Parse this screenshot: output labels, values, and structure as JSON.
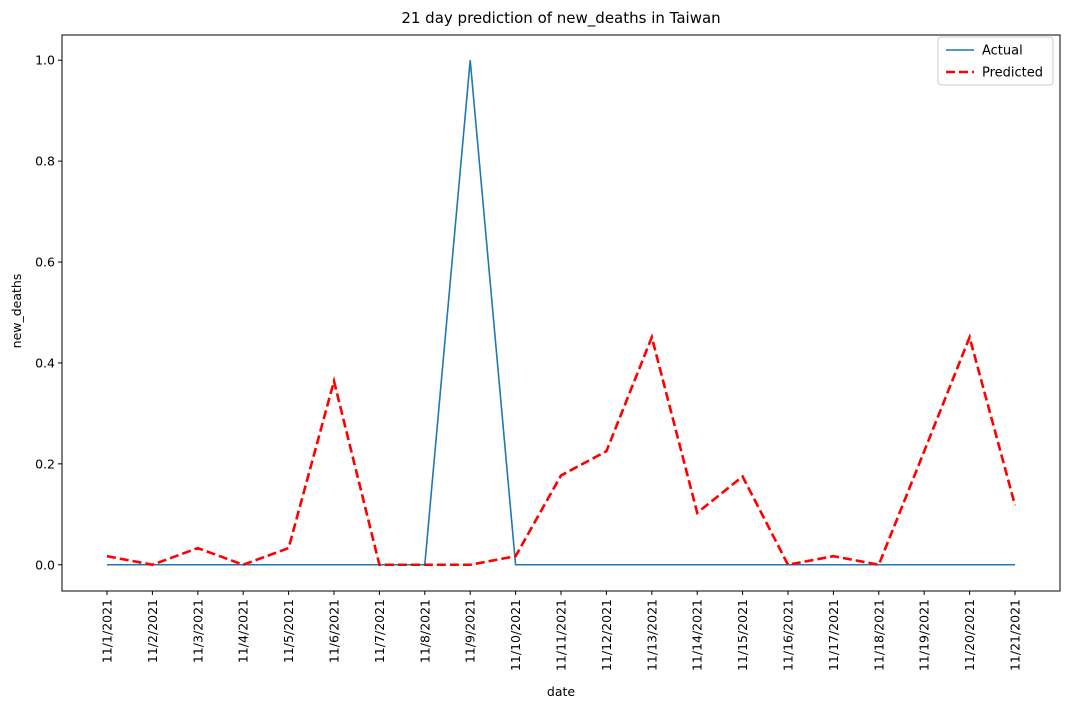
{
  "chart_data": {
    "type": "line",
    "title": "21 day prediction of new_deaths in Taiwan",
    "xlabel": "date",
    "ylabel": "new_deaths",
    "categories": [
      "11/1/2021",
      "11/2/2021",
      "11/3/2021",
      "11/4/2021",
      "11/5/2021",
      "11/6/2021",
      "11/7/2021",
      "11/8/2021",
      "11/9/2021",
      "11/10/2021",
      "11/11/2021",
      "11/12/2021",
      "11/13/2021",
      "11/14/2021",
      "11/15/2021",
      "11/16/2021",
      "11/17/2021",
      "11/18/2021",
      "11/19/2021",
      "11/20/2021",
      "11/21/2021"
    ],
    "ylim": [
      -0.052,
      1.05
    ],
    "yticks": [
      0.0,
      0.2,
      0.4,
      0.6,
      0.8,
      1.0
    ],
    "ytick_labels": [
      "0.0",
      "0.2",
      "0.4",
      "0.6",
      "0.8",
      "1.0"
    ],
    "grid": false,
    "legend_position": "top-right",
    "series": [
      {
        "name": "Actual",
        "color": "#1f77b4",
        "style": "solid",
        "values": [
          0,
          0,
          0,
          0,
          0,
          0,
          0,
          0,
          1,
          0,
          0,
          0,
          0,
          0,
          0,
          0,
          0,
          0,
          0,
          0,
          0
        ]
      },
      {
        "name": "Predicted",
        "color": "#ff0000",
        "style": "dashed",
        "values": [
          0.017,
          0,
          0.033,
          0,
          0.033,
          0.364,
          0,
          0,
          0,
          0.017,
          0.177,
          0.225,
          0.451,
          0.103,
          0.175,
          0,
          0.017,
          0,
          0.225,
          0.451,
          0.118
        ]
      }
    ]
  }
}
